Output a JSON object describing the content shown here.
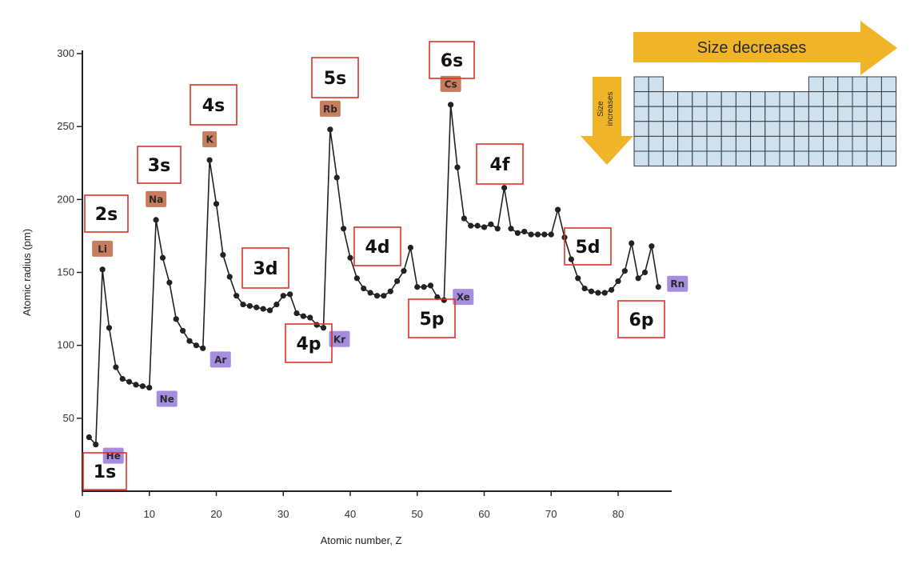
{
  "chart_data": {
    "type": "line",
    "xlabel": "Atomic number, Z",
    "ylabel": "Atomic radius (pm)",
    "xlim": [
      0,
      88
    ],
    "ylim": [
      0,
      300
    ],
    "x_ticks": [
      0,
      10,
      20,
      30,
      40,
      50,
      60,
      70,
      80
    ],
    "y_ticks": [
      50,
      100,
      150,
      200,
      250,
      300
    ],
    "grid": false,
    "marker": "dot",
    "series": [
      {
        "x": [
          1,
          2,
          3,
          4,
          5,
          6,
          7,
          8,
          9,
          10,
          11,
          12,
          13,
          14,
          15,
          16,
          17,
          18,
          19,
          20,
          21,
          22,
          23,
          24,
          25,
          26,
          27,
          28,
          29,
          30,
          31,
          32,
          33,
          34,
          35,
          36,
          37,
          38,
          39,
          40,
          41,
          42,
          43,
          44,
          45,
          46,
          47,
          48,
          49,
          50,
          51,
          52,
          53,
          54,
          55,
          56,
          57,
          58,
          59,
          60,
          61,
          62,
          63,
          64,
          65,
          66,
          67,
          68,
          69,
          70,
          71,
          72,
          73,
          74,
          75,
          76,
          77,
          78,
          79,
          80,
          81,
          82,
          83,
          84,
          85,
          86
        ],
        "y": [
          37,
          32,
          152,
          112,
          85,
          77,
          75,
          73,
          72,
          71,
          186,
          160,
          143,
          118,
          110,
          103,
          100,
          98,
          227,
          197,
          162,
          147,
          134,
          128,
          127,
          126,
          125,
          124,
          128,
          134,
          135,
          122,
          120,
          119,
          114,
          112,
          248,
          215,
          180,
          160,
          146,
          139,
          136,
          134,
          134,
          137,
          144,
          151,
          167,
          140,
          140,
          141,
          133,
          131,
          265,
          222,
          187,
          182,
          182,
          181,
          183,
          180,
          208,
          180,
          177,
          178,
          176,
          176,
          176,
          176,
          193,
          174,
          159,
          146,
          139,
          137,
          136,
          136,
          138,
          144,
          151,
          170,
          146,
          150,
          168,
          140
        ]
      }
    ],
    "element_labels": [
      {
        "label": "He",
        "z": 2,
        "group": "noble"
      },
      {
        "label": "Li",
        "z": 3,
        "group": "alkali"
      },
      {
        "label": "Ne",
        "z": 10,
        "group": "noble"
      },
      {
        "label": "Na",
        "z": 11,
        "group": "alkali"
      },
      {
        "label": "Ar",
        "z": 18,
        "group": "noble"
      },
      {
        "label": "K",
        "z": 19,
        "group": "alkali"
      },
      {
        "label": "Kr",
        "z": 36,
        "group": "noble"
      },
      {
        "label": "Rb",
        "z": 37,
        "group": "alkali"
      },
      {
        "label": "Xe",
        "z": 54,
        "group": "noble"
      },
      {
        "label": "Cs",
        "z": 55,
        "group": "alkali"
      },
      {
        "label": "Rn",
        "z": 86,
        "group": "noble"
      }
    ],
    "orbital_annotations": [
      "1s",
      "2s",
      "3s",
      "4s",
      "3d",
      "4p",
      "5s",
      "4d",
      "5p",
      "6s",
      "4f",
      "5d",
      "6p"
    ],
    "inset": {
      "horizontal_arrow_label": "Size decreases",
      "vertical_arrow_label_line1": "Size",
      "vertical_arrow_label_line2": "increases"
    },
    "colors": {
      "line": "#222222",
      "alkali_label_bg": "#c87d5e",
      "noble_label_bg": "#a58ee0",
      "orbital_box_border": "#e0302a",
      "arrow": "#f0b429",
      "table_fill": "#cfe0ee"
    }
  }
}
